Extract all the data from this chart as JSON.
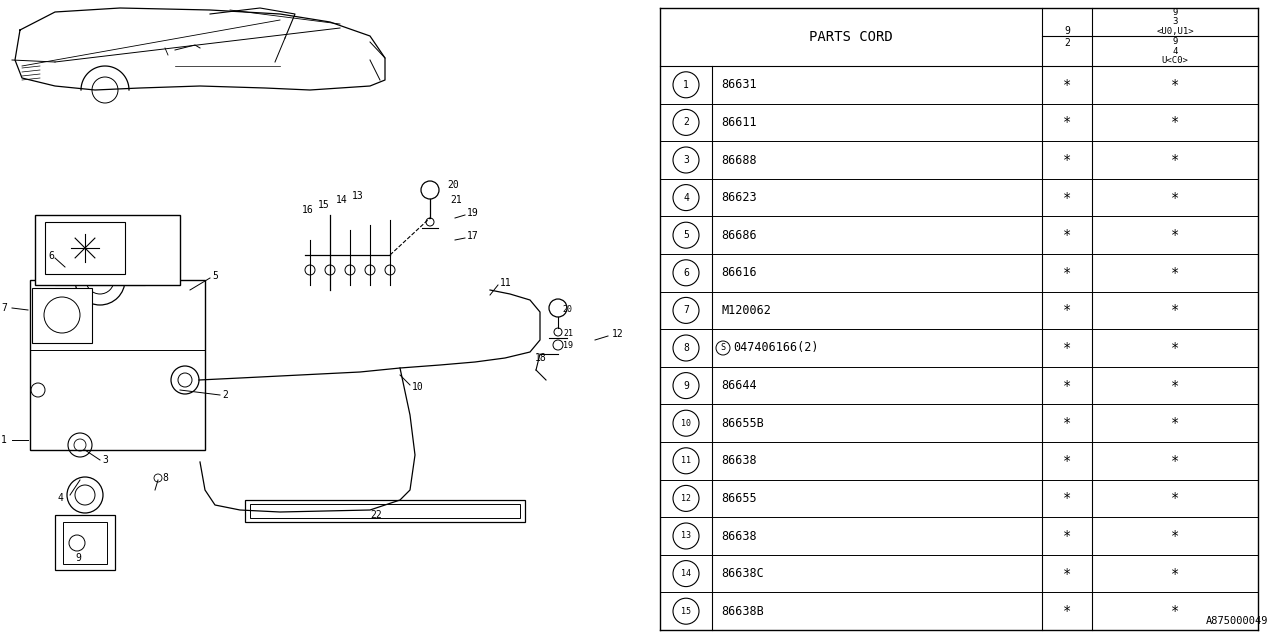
{
  "part_number_label": "A875000049",
  "table_header": "PARTS CORD",
  "rows": [
    {
      "num": "1",
      "part": "86631",
      "c2": "*",
      "c3": "*"
    },
    {
      "num": "2",
      "part": "86611",
      "c2": "*",
      "c3": "*"
    },
    {
      "num": "3",
      "part": "86688",
      "c2": "*",
      "c3": "*"
    },
    {
      "num": "4",
      "part": "86623",
      "c2": "*",
      "c3": "*"
    },
    {
      "num": "5",
      "part": "86686",
      "c2": "*",
      "c3": "*"
    },
    {
      "num": "6",
      "part": "86616",
      "c2": "*",
      "c3": "*"
    },
    {
      "num": "7",
      "part": "M120062",
      "c2": "*",
      "c3": "*"
    },
    {
      "num": "8",
      "part": "047406166(2)",
      "c2": "*",
      "c3": "*"
    },
    {
      "num": "9",
      "part": "86644",
      "c2": "*",
      "c3": "*"
    },
    {
      "num": "10",
      "part": "86655B",
      "c2": "*",
      "c3": "*"
    },
    {
      "num": "11",
      "part": "86638",
      "c2": "*",
      "c3": "*"
    },
    {
      "num": "12",
      "part": "86655",
      "c2": "*",
      "c3": "*"
    },
    {
      "num": "13",
      "part": "86638",
      "c2": "*",
      "c3": "*"
    },
    {
      "num": "14",
      "part": "86638C",
      "c2": "*",
      "c3": "*"
    },
    {
      "num": "15",
      "part": "86638B",
      "c2": "*",
      "c3": "*"
    }
  ],
  "bg_color": "#ffffff",
  "line_color": "#000000"
}
